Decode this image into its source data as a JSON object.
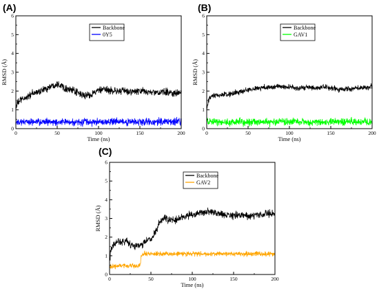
{
  "chart_data": [
    {
      "type": "line",
      "panel_label": "(A)",
      "xlabel": "Time (ns)",
      "ylabel": "RMSD (Å)",
      "xlim": [
        0,
        200
      ],
      "ylim": [
        0,
        6
      ],
      "x_ticks": [
        0,
        50,
        100,
        150,
        200
      ],
      "y_ticks": [
        0,
        1,
        2,
        3,
        4,
        5,
        6
      ],
      "legend_position": "top-center",
      "series": [
        {
          "name": "Backbone",
          "color": "#000000",
          "noise": 0.12,
          "x": [
            0,
            2,
            5,
            10,
            20,
            30,
            40,
            50,
            55,
            60,
            70,
            80,
            85,
            90,
            100,
            110,
            120,
            130,
            140,
            150,
            160,
            170,
            180,
            190,
            200
          ],
          "y": [
            1.1,
            1.35,
            1.5,
            1.6,
            1.85,
            2.0,
            2.2,
            2.4,
            2.3,
            2.15,
            2.0,
            1.8,
            1.75,
            1.8,
            2.05,
            2.05,
            2.0,
            2.0,
            1.95,
            2.0,
            1.95,
            1.9,
            1.95,
            1.9,
            1.9
          ]
        },
        {
          "name": "0Y5",
          "color": "#0000ff",
          "noise": 0.12,
          "x": [
            0,
            50,
            100,
            150,
            200
          ],
          "y": [
            0.35,
            0.35,
            0.35,
            0.35,
            0.4
          ]
        }
      ]
    },
    {
      "type": "line",
      "panel_label": "(B)",
      "xlabel": "Time (ns)",
      "ylabel": "RMSD (Å)",
      "xlim": [
        0,
        200
      ],
      "ylim": [
        0,
        6
      ],
      "x_ticks": [
        0,
        50,
        100,
        150,
        200
      ],
      "y_ticks": [
        0,
        1,
        2,
        3,
        4,
        5,
        6
      ],
      "legend_position": "top-center",
      "series": [
        {
          "name": "Backbone",
          "color": "#000000",
          "noise": 0.09,
          "x": [
            0,
            2,
            5,
            10,
            20,
            30,
            40,
            50,
            60,
            70,
            80,
            90,
            100,
            110,
            120,
            130,
            140,
            150,
            160,
            170,
            180,
            190,
            200
          ],
          "y": [
            1.0,
            1.45,
            1.7,
            1.75,
            1.8,
            1.85,
            1.95,
            2.05,
            2.15,
            2.2,
            2.2,
            2.25,
            2.2,
            2.15,
            2.2,
            2.15,
            2.2,
            2.15,
            2.1,
            2.1,
            2.15,
            2.2,
            2.25
          ]
        },
        {
          "name": "GAV1",
          "color": "#00ff00",
          "noise": 0.12,
          "x": [
            0,
            50,
            100,
            150,
            200
          ],
          "y": [
            0.35,
            0.35,
            0.35,
            0.35,
            0.35
          ]
        }
      ]
    },
    {
      "type": "line",
      "panel_label": "(C)",
      "xlabel": "Time (ns)",
      "ylabel": "RMSD (Å)",
      "xlim": [
        0,
        200
      ],
      "ylim": [
        0,
        6
      ],
      "x_ticks": [
        0,
        50,
        100,
        150,
        200
      ],
      "y_ticks": [
        0,
        1,
        2,
        3,
        4,
        5,
        6
      ],
      "legend_position": "top-center",
      "series": [
        {
          "name": "Backbone",
          "color": "#000000",
          "noise": 0.12,
          "x": [
            0,
            2,
            5,
            10,
            15,
            20,
            25,
            30,
            35,
            40,
            45,
            50,
            55,
            60,
            65,
            70,
            80,
            90,
            100,
            110,
            120,
            130,
            140,
            150,
            160,
            170,
            180,
            190,
            200
          ],
          "y": [
            0.8,
            1.3,
            1.6,
            1.8,
            1.75,
            1.8,
            1.6,
            1.55,
            1.55,
            1.6,
            1.8,
            1.9,
            2.2,
            2.7,
            3.0,
            2.95,
            2.9,
            3.1,
            3.2,
            3.3,
            3.35,
            3.25,
            3.2,
            3.15,
            3.2,
            3.1,
            3.2,
            3.25,
            3.25
          ]
        },
        {
          "name": "GAV2",
          "color": "#ffa500",
          "noise": 0.08,
          "x": [
            0,
            10,
            20,
            30,
            37,
            38,
            40,
            60,
            80,
            100,
            120,
            140,
            160,
            180,
            200
          ],
          "y": [
            0.4,
            0.45,
            0.45,
            0.45,
            0.5,
            0.95,
            1.1,
            1.1,
            1.1,
            1.1,
            1.1,
            1.1,
            1.1,
            1.1,
            1.1
          ]
        }
      ]
    }
  ]
}
